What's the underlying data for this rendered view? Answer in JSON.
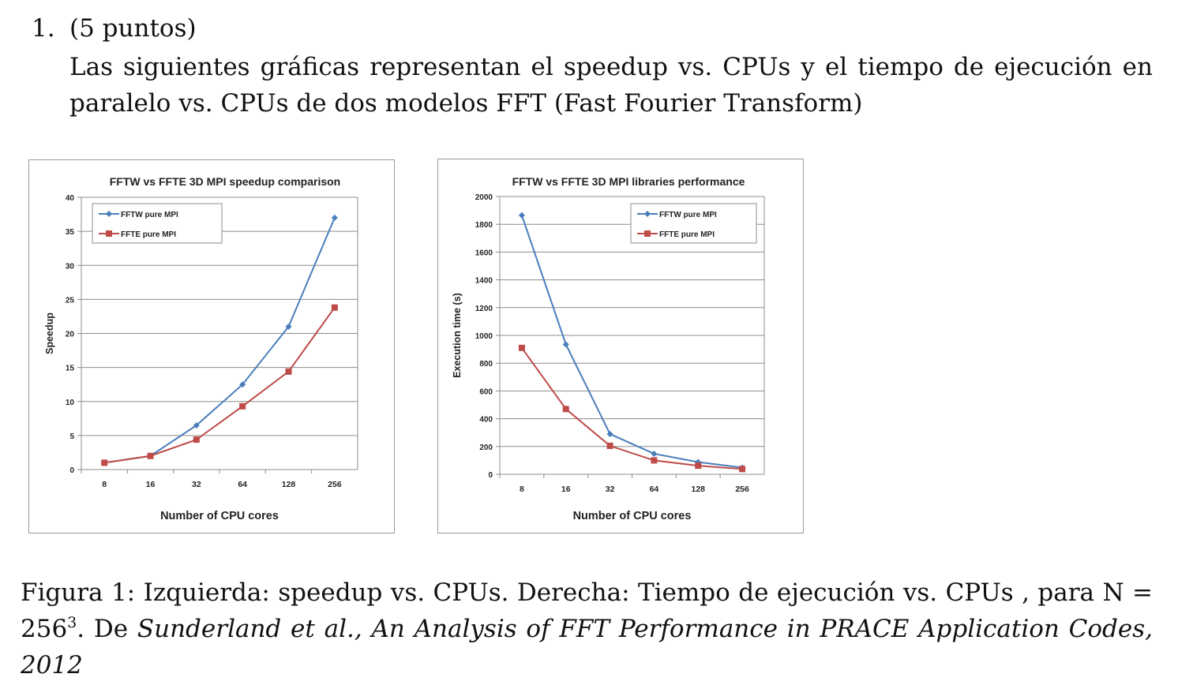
{
  "question": {
    "number": "1.",
    "points": "(5 puntos)",
    "text": "Las siguientes gráficas representan el speedup vs. CPUs y el tiempo de ejecución en paralelo vs. CPUs de dos modelos FFT (Fast Fourier Transform)"
  },
  "caption": {
    "lead": "Figura 1: Izquierda: speedup vs. CPUs. Derecha: Tiempo de ejecución vs. CPUs , para N = 256",
    "exponent": "3",
    "source_prefix": ". De ",
    "source_italic": "Sunderland et al., An Analysis of FFT Performance in PRACE Application Codes, 2012"
  },
  "chart_data": [
    {
      "type": "line",
      "title": "FFTW  vs FFTE 3D MPI  speedup comparison",
      "xlabel": "Number of CPU cores",
      "ylabel": "Speedup",
      "categories": [
        "8",
        "16",
        "32",
        "64",
        "128",
        "256"
      ],
      "ylim": [
        0,
        40
      ],
      "yticks": [
        "0",
        "5",
        "10",
        "15",
        "20",
        "25",
        "30",
        "35",
        "40"
      ],
      "grid": true,
      "legend_position": "top-left",
      "series": [
        {
          "name": "FFTW  pure MPI",
          "color": "#4a7ebb",
          "marker": "diamond",
          "values": [
            1,
            2,
            6.5,
            12.5,
            21,
            37
          ]
        },
        {
          "name": "FFTE  pure  MPI",
          "color": "#be4b48",
          "marker": "square",
          "values": [
            1,
            2,
            4.4,
            9.3,
            14.4,
            23.8
          ]
        }
      ]
    },
    {
      "type": "line",
      "title": "FFTW  vs FFTE 3D MPI  libraries performance",
      "xlabel": "Number of CPU cores",
      "ylabel": "Execution time (s)",
      "categories": [
        "8",
        "16",
        "32",
        "64",
        "128",
        "256"
      ],
      "ylim": [
        0,
        2000
      ],
      "yticks": [
        "0",
        "200",
        "400",
        "600",
        "800",
        "1000",
        "1200",
        "1400",
        "1600",
        "1800",
        "2000"
      ],
      "grid": true,
      "legend_position": "top-right",
      "series": [
        {
          "name": "FFTW  pure MPI",
          "color": "#4a7ebb",
          "marker": "diamond",
          "values": [
            1865,
            935,
            290,
            148,
            88,
            48
          ]
        },
        {
          "name": "FFTE  pure MPI",
          "color": "#be4b48",
          "marker": "square",
          "values": [
            910,
            470,
            205,
            100,
            62,
            38
          ]
        }
      ]
    }
  ]
}
